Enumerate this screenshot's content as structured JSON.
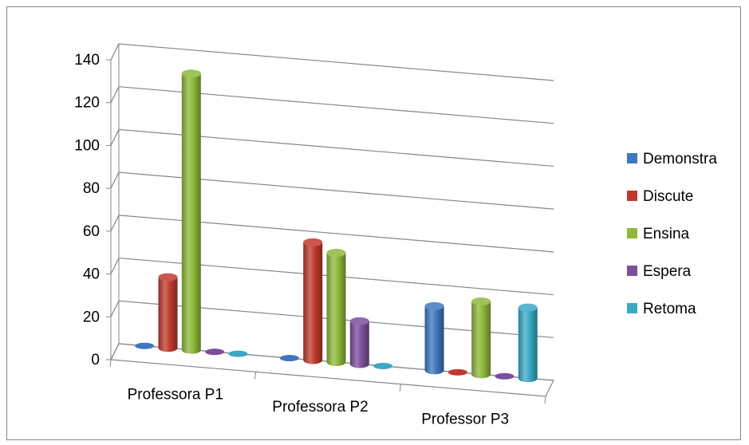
{
  "chart_data": {
    "type": "bar",
    "style": "3d-cylinder",
    "categories": [
      "Professora P1",
      "Professora P2",
      "Professor P3"
    ],
    "series": [
      {
        "name": "Demonstra",
        "values": [
          0,
          0,
          30
        ],
        "color": "#3F78C0"
      },
      {
        "name": "Discute",
        "values": [
          33,
          55,
          0
        ],
        "color": "#C0392F"
      },
      {
        "name": "Ensina",
        "values": [
          129,
          51,
          34
        ],
        "color": "#8DB83A"
      },
      {
        "name": "Espera",
        "values": [
          0,
          20,
          0
        ],
        "color": "#7E4E9C"
      },
      {
        "name": "Retoma",
        "values": [
          0,
          0,
          33
        ],
        "color": "#3BA9C6"
      }
    ],
    "y_ticks": [
      0,
      20,
      40,
      60,
      80,
      100,
      120,
      140
    ],
    "ylim": [
      0,
      140
    ],
    "grid": true,
    "legend_position": "right"
  }
}
